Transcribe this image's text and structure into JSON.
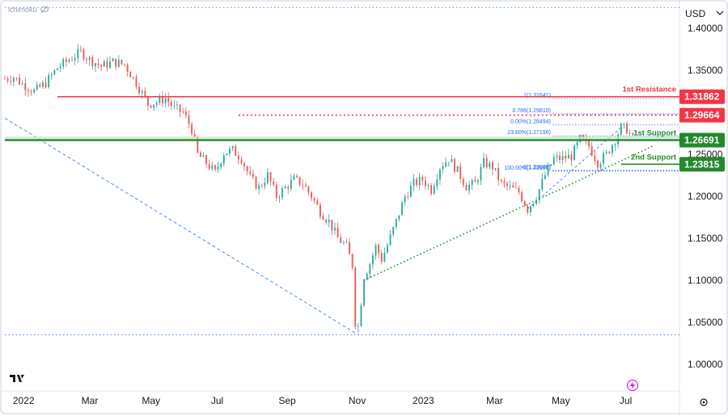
{
  "indicator": {
    "label": "ichimoku",
    "icon": "eye-off-icon"
  },
  "currency": "USD",
  "logo": "TradingView",
  "chart_data": {
    "type": "candlestick",
    "y_axis": {
      "range": [
        0.97,
        1.43
      ],
      "ticks": [
        "1.40000",
        "1.35000",
        "1.30000",
        "1.25000",
        "1.20000",
        "1.15000",
        "1.10000",
        "1.05000",
        "1.00000"
      ]
    },
    "x_axis": {
      "ticks": [
        "2022",
        "Mar",
        "May",
        "Jul",
        "Sep",
        "Nov",
        "2023",
        "Mar",
        "May",
        "Jul"
      ]
    },
    "price_path": [
      [
        0,
        1.34
      ],
      [
        6,
        1.342
      ],
      [
        12,
        1.334
      ],
      [
        20,
        1.325
      ],
      [
        28,
        1.335
      ],
      [
        36,
        1.353
      ],
      [
        46,
        1.365
      ],
      [
        52,
        1.372
      ],
      [
        58,
        1.363
      ],
      [
        66,
        1.355
      ],
      [
        74,
        1.36
      ],
      [
        82,
        1.357
      ],
      [
        90,
        1.335
      ],
      [
        98,
        1.31
      ],
      [
        104,
        1.312
      ],
      [
        110,
        1.317
      ],
      [
        116,
        1.305
      ],
      [
        122,
        1.3
      ],
      [
        128,
        1.28
      ],
      [
        132,
        1.25
      ],
      [
        138,
        1.24
      ],
      [
        144,
        1.228
      ],
      [
        150,
        1.252
      ],
      [
        156,
        1.255
      ],
      [
        162,
        1.245
      ],
      [
        168,
        1.222
      ],
      [
        174,
        1.21
      ],
      [
        180,
        1.225
      ],
      [
        186,
        1.2
      ],
      [
        192,
        1.21
      ],
      [
        198,
        1.22
      ],
      [
        204,
        1.215
      ],
      [
        210,
        1.2
      ],
      [
        216,
        1.182
      ],
      [
        222,
        1.17
      ],
      [
        228,
        1.15
      ],
      [
        234,
        1.14
      ],
      [
        238,
        1.118
      ],
      [
        240,
        1.05
      ],
      [
        242,
        1.045
      ],
      [
        246,
        1.105
      ],
      [
        250,
        1.12
      ],
      [
        254,
        1.14
      ],
      [
        258,
        1.125
      ],
      [
        262,
        1.142
      ],
      [
        268,
        1.17
      ],
      [
        274,
        1.2
      ],
      [
        280,
        1.215
      ],
      [
        286,
        1.22
      ],
      [
        292,
        1.208
      ],
      [
        298,
        1.235
      ],
      [
        304,
        1.245
      ],
      [
        310,
        1.23
      ],
      [
        316,
        1.212
      ],
      [
        322,
        1.215
      ],
      [
        328,
        1.24
      ],
      [
        334,
        1.235
      ],
      [
        340,
        1.215
      ],
      [
        346,
        1.21
      ],
      [
        352,
        1.205
      ],
      [
        358,
        1.185
      ],
      [
        364,
        1.2
      ],
      [
        370,
        1.225
      ],
      [
        376,
        1.245
      ],
      [
        382,
        1.245
      ],
      [
        388,
        1.248
      ],
      [
        394,
        1.268
      ],
      [
        400,
        1.26
      ],
      [
        406,
        1.24
      ],
      [
        412,
        1.25
      ],
      [
        418,
        1.268
      ],
      [
        422,
        1.282
      ],
      [
        426,
        1.28
      ],
      [
        430,
        1.268
      ]
    ],
    "levels": [
      {
        "label": "1st Resistance",
        "value": "1.31862",
        "color": "#f23645",
        "style": "solid"
      },
      {
        "label": "",
        "value": "1.29664",
        "color": "#f23645",
        "style": "dotted"
      },
      {
        "label": "1st Support",
        "value": "1.26691",
        "color": "#22892c",
        "style": "solid"
      },
      {
        "label": "2nd Support",
        "value": "1.23815",
        "color": "#22892c",
        "style": "solid"
      }
    ],
    "fibonacci": [
      {
        "label": "1(1.31641)",
        "value": 1.31641
      },
      {
        "label": "0.786(1.29810)",
        "value": 1.2981
      },
      {
        "label": "0.00%(1.28494)",
        "value": 1.28494
      },
      {
        "label": "23.60%(1.27196)",
        "value": 1.27196
      },
      {
        "label": "0(1.23085)",
        "value": 1.23085
      },
      {
        "label": "100.00%(1.22996)",
        "value": 1.22996
      }
    ],
    "trendlines": [
      {
        "name": "long-term-downtrend",
        "from": [
          0,
          1.293
        ],
        "to": [
          242,
          1.035
        ],
        "color": "#4a90e2",
        "style": "dashed"
      },
      {
        "name": "uptrend-support",
        "from": [
          246,
          1.1
        ],
        "to": [
          444,
          1.26
        ],
        "color": "#22892c",
        "style": "dotted"
      },
      {
        "name": "horizontal-low",
        "from": [
          0,
          1.035
        ],
        "to": [
          462,
          1.035
        ],
        "color": "#4a90e2",
        "style": "dotted"
      },
      {
        "name": "horizontal-top",
        "from": [
          0,
          1.425
        ],
        "to": [
          462,
          1.425
        ],
        "color": "#4a90e2",
        "style": "dotted"
      }
    ],
    "bottom_icon": "lightning-icon",
    "settings_icon": "gear-icon"
  },
  "colors": {
    "up": "#26a69a",
    "down": "#ef5350",
    "red": "#f23645",
    "green": "#22892c",
    "blue": "#2962ff"
  }
}
